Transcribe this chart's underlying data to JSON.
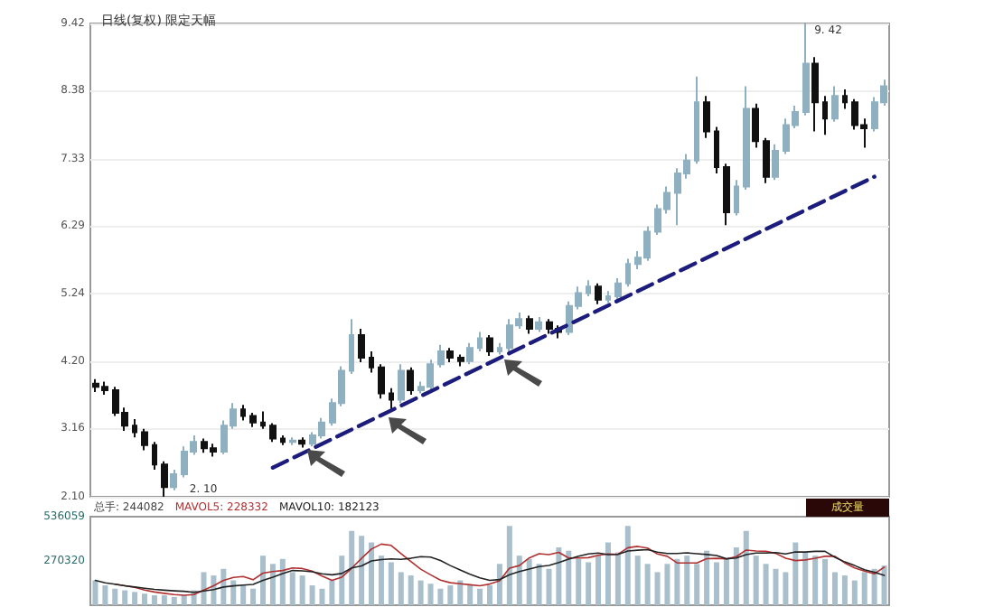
{
  "chart_data": [
    {
      "type": "candlestick",
      "title": "日线(复权) 限定天幅",
      "categories": [
        null,
        null,
        null,
        null,
        null,
        null,
        null,
        null,
        null,
        null,
        null,
        null,
        null,
        null,
        null,
        null,
        null,
        null,
        null,
        null,
        null,
        null,
        null,
        null,
        null,
        null,
        null,
        null,
        null,
        null,
        null,
        null,
        null,
        null,
        null,
        null,
        null,
        null,
        null,
        null,
        null,
        null,
        null,
        null,
        null,
        null,
        null,
        null,
        null,
        null,
        null,
        null,
        null,
        null,
        null,
        null,
        null,
        null,
        null,
        null,
        null,
        null,
        null,
        null,
        null,
        null,
        null,
        null,
        null,
        null,
        null,
        null,
        null,
        null,
        null,
        null,
        null,
        null,
        null,
        null,
        null
      ],
      "series": [
        {
          "ohlc": [
            [
              3.85,
              3.92,
              3.72,
              3.8
            ],
            [
              3.8,
              3.88,
              3.68,
              3.75
            ],
            [
              3.75,
              3.8,
              3.35,
              3.4
            ],
            [
              3.4,
              3.48,
              3.12,
              3.2
            ],
            [
              3.2,
              3.3,
              3.02,
              3.1
            ],
            [
              3.1,
              3.15,
              2.82,
              2.9
            ],
            [
              2.9,
              2.95,
              2.52,
              2.6
            ],
            [
              2.6,
              2.65,
              2.1,
              2.25
            ],
            [
              2.25,
              2.52,
              2.2,
              2.45
            ],
            [
              2.45,
              2.88,
              2.4,
              2.8
            ],
            [
              2.8,
              3.05,
              2.75,
              2.95
            ],
            [
              2.95,
              3.0,
              2.78,
              2.85
            ],
            [
              2.85,
              2.92,
              2.72,
              2.8
            ],
            [
              2.8,
              3.28,
              2.76,
              3.2
            ],
            [
              3.2,
              3.55,
              3.15,
              3.45
            ],
            [
              3.45,
              3.52,
              3.28,
              3.35
            ],
            [
              3.35,
              3.4,
              3.18,
              3.25
            ],
            [
              3.25,
              3.42,
              3.15,
              3.2
            ],
            [
              3.2,
              3.24,
              2.95,
              3.0
            ],
            [
              3.0,
              3.05,
              2.9,
              2.95
            ],
            [
              2.95,
              3.02,
              2.9,
              2.97
            ],
            [
              2.97,
              3.02,
              2.86,
              2.92
            ],
            [
              2.92,
              3.1,
              2.88,
              3.05
            ],
            [
              3.05,
              3.32,
              3.0,
              3.25
            ],
            [
              3.25,
              3.62,
              3.2,
              3.55
            ],
            [
              3.55,
              4.12,
              3.5,
              4.05
            ],
            [
              4.05,
              4.85,
              4.0,
              4.6
            ],
            [
              4.6,
              4.7,
              4.18,
              4.25
            ],
            [
              4.25,
              4.35,
              4.02,
              4.1
            ],
            [
              4.1,
              4.15,
              3.62,
              3.7
            ],
            [
              3.7,
              3.78,
              3.45,
              3.6
            ],
            [
              3.6,
              4.15,
              3.55,
              4.05
            ],
            [
              4.05,
              4.1,
              3.68,
              3.75
            ],
            [
              3.75,
              3.88,
              3.7,
              3.8
            ],
            [
              3.8,
              4.22,
              3.75,
              4.15
            ],
            [
              4.15,
              4.45,
              4.1,
              4.35
            ],
            [
              4.35,
              4.4,
              4.18,
              4.25
            ],
            [
              4.25,
              4.3,
              4.12,
              4.2
            ],
            [
              4.2,
              4.48,
              4.15,
              4.4
            ],
            [
              4.4,
              4.65,
              4.35,
              4.55
            ],
            [
              4.55,
              4.6,
              4.28,
              4.35
            ],
            [
              4.35,
              4.48,
              4.3,
              4.4
            ],
            [
              4.4,
              4.85,
              4.35,
              4.75
            ],
            [
              4.75,
              4.95,
              4.7,
              4.85
            ],
            [
              4.85,
              4.9,
              4.62,
              4.7
            ],
            [
              4.7,
              4.88,
              4.65,
              4.8
            ],
            [
              4.8,
              4.85,
              4.62,
              4.7
            ],
            [
              4.7,
              4.75,
              4.55,
              4.65
            ],
            [
              4.65,
              5.12,
              4.6,
              5.05
            ],
            [
              5.05,
              5.35,
              5.0,
              5.25
            ],
            [
              5.25,
              5.45,
              5.2,
              5.35
            ],
            [
              5.35,
              5.4,
              5.08,
              5.15
            ],
            [
              5.15,
              5.28,
              5.1,
              5.2
            ],
            [
              5.2,
              5.48,
              5.15,
              5.4
            ],
            [
              5.4,
              5.78,
              5.35,
              5.7
            ],
            [
              5.7,
              5.9,
              5.62,
              5.8
            ],
            [
              5.8,
              6.28,
              5.75,
              6.2
            ],
            [
              6.2,
              6.62,
              6.15,
              6.55
            ],
            [
              6.55,
              6.9,
              6.48,
              6.8
            ],
            [
              6.8,
              7.18,
              6.3,
              7.1
            ],
            [
              7.1,
              7.4,
              7.02,
              7.3
            ],
            [
              7.3,
              8.6,
              7.25,
              8.2
            ],
            [
              8.2,
              8.3,
              7.65,
              7.75
            ],
            [
              7.75,
              7.82,
              7.1,
              7.2
            ],
            [
              7.2,
              7.25,
              6.3,
              6.5
            ],
            [
              6.5,
              7.0,
              6.45,
              6.9
            ],
            [
              6.9,
              8.45,
              6.85,
              8.1
            ],
            [
              8.1,
              8.18,
              7.5,
              7.6
            ],
            [
              7.6,
              7.65,
              6.95,
              7.05
            ],
            [
              7.05,
              7.55,
              7.0,
              7.45
            ],
            [
              7.45,
              7.95,
              7.4,
              7.85
            ],
            [
              7.85,
              8.15,
              7.8,
              8.05
            ],
            [
              8.05,
              9.42,
              8.0,
              8.8
            ],
            [
              8.8,
              8.9,
              7.75,
              8.2
            ],
            [
              8.2,
              8.3,
              7.7,
              7.95
            ],
            [
              7.95,
              8.45,
              7.9,
              8.3
            ],
            [
              8.3,
              8.4,
              8.1,
              8.2
            ],
            [
              8.2,
              8.25,
              7.78,
              7.85
            ],
            [
              7.85,
              7.95,
              7.5,
              7.8
            ],
            [
              7.8,
              8.28,
              7.75,
              8.2
            ],
            [
              8.2,
              8.55,
              8.15,
              8.45
            ]
          ],
          "colors": [
            "#111111",
            "#111111",
            "#111111",
            "#111111",
            "#111111",
            "#111111",
            "#111111",
            "#111111",
            "#8fb0c0",
            "#8fb0c0",
            "#8fb0c0",
            "#111111",
            "#111111",
            "#8fb0c0",
            "#8fb0c0",
            "#111111",
            "#111111",
            "#111111",
            "#111111",
            "#111111",
            "#8fb0c0",
            "#111111",
            "#8fb0c0",
            "#8fb0c0",
            "#8fb0c0",
            "#8fb0c0",
            "#8fb0c0",
            "#111111",
            "#111111",
            "#111111",
            "#111111",
            "#8fb0c0",
            "#111111",
            "#8fb0c0",
            "#8fb0c0",
            "#8fb0c0",
            "#111111",
            "#111111",
            "#8fb0c0",
            "#8fb0c0",
            "#111111",
            "#8fb0c0",
            "#8fb0c0",
            "#8fb0c0",
            "#111111",
            "#8fb0c0",
            "#111111",
            "#111111",
            "#8fb0c0",
            "#8fb0c0",
            "#8fb0c0",
            "#111111",
            "#8fb0c0",
            "#8fb0c0",
            "#8fb0c0",
            "#8fb0c0",
            "#8fb0c0",
            "#8fb0c0",
            "#8fb0c0",
            "#8fb0c0",
            "#8fb0c0",
            "#8fb0c0",
            "#111111",
            "#111111",
            "#111111",
            "#8fb0c0",
            "#8fb0c0",
            "#111111",
            "#111111",
            "#8fb0c0",
            "#8fb0c0",
            "#8fb0c0",
            "#8fb0c0",
            "#111111",
            "#111111",
            "#8fb0c0",
            "#111111",
            "#111111",
            "#111111",
            "#8fb0c0",
            "#8fb0c0"
          ]
        },
        {
          "type": "line",
          "color": "#1c1c7c",
          "line_style": "dashed",
          "values": [
            null,
            null,
            null,
            null,
            null,
            null,
            null,
            null,
            null,
            null,
            null,
            null,
            null,
            null,
            null,
            null,
            null,
            null,
            2.55,
            null,
            null,
            null,
            null,
            null,
            null,
            null,
            null,
            null,
            null,
            null,
            null,
            null,
            null,
            null,
            null,
            null,
            null,
            null,
            null,
            null,
            null,
            null,
            null,
            null,
            null,
            null,
            null,
            null,
            null,
            null,
            null,
            null,
            null,
            null,
            null,
            null,
            null,
            null,
            null,
            null,
            null,
            null,
            null,
            null,
            null,
            null,
            null,
            null,
            null,
            null,
            null,
            null,
            null,
            null,
            null,
            null,
            null,
            null,
            null,
            7.05,
            null
          ]
        }
      ],
      "ylim": [
        2.1,
        9.42
      ],
      "yticks": [
        {
          "value": 2.1,
          "label": "2.10"
        },
        3.16,
        {
          "value": 4.2,
          "label": "4.20"
        },
        5.24,
        6.29,
        7.33,
        8.38,
        9.42
      ],
      "grid": "y",
      "tick_labels": "y",
      "annotations": [
        "9. 42",
        "2. 10"
      ]
    },
    {
      "type": "bar",
      "marker": "none",
      "tick_labels": "y",
      "annotations": [
        "总手: 244082",
        "MAVOL5: 228332",
        "MAVOL10: 182123",
        "成交量"
      ],
      "categories": [
        null,
        null,
        null,
        null,
        null,
        null,
        null,
        null,
        null,
        null,
        null,
        null,
        null,
        null,
        null,
        null,
        null,
        null,
        null,
        null,
        null,
        null,
        null,
        null,
        null,
        null,
        null,
        null,
        null,
        null,
        null,
        null,
        null,
        null,
        null,
        null,
        null,
        null,
        null,
        null,
        null,
        null,
        null,
        null,
        null,
        null,
        null,
        null,
        null,
        null,
        null,
        null,
        null,
        null,
        null,
        null,
        null,
        null,
        null,
        null,
        null,
        null,
        null,
        null,
        null,
        null,
        null,
        null,
        null,
        null,
        null,
        null,
        null,
        null,
        null,
        null,
        null,
        null,
        null,
        null,
        null
      ],
      "ylim": [
        0,
        536059
      ],
      "yticks": [
        270320,
        536059
      ],
      "series": [
        {
          "color": "#a9bfcc",
          "values": [
            150000,
            120000,
            100000,
            90000,
            80000,
            70000,
            60000,
            60000,
            50000,
            60000,
            90000,
            200000,
            180000,
            220000,
            150000,
            120000,
            100000,
            300000,
            250000,
            280000,
            200000,
            180000,
            120000,
            100000,
            150000,
            300000,
            450000,
            420000,
            380000,
            300000,
            260000,
            200000,
            180000,
            150000,
            130000,
            100000,
            120000,
            150000,
            120000,
            100000,
            120000,
            250000,
            480000,
            300000,
            280000,
            250000,
            220000,
            350000,
            330000,
            280000,
            260000,
            300000,
            380000,
            320000,
            480000,
            300000,
            250000,
            200000,
            250000,
            280000,
            300000,
            250000,
            330000,
            260000,
            280000,
            350000,
            450000,
            300000,
            250000,
            220000,
            200000,
            380000,
            320000,
            300000,
            280000,
            200000,
            180000,
            150000,
            200000,
            220000,
            240000
          ]
        },
        {
          "type": "line",
          "color": "#b03030",
          "values": [
            null,
            null,
            127000,
            118000,
            108000,
            92000,
            80000,
            72000,
            64000,
            60000,
            64000,
            92000,
            118000,
            150000,
            168000,
            174000,
            154000,
            194000,
            204000,
            210000,
            226000,
            222000,
            206000,
            176000,
            150000,
            170000,
            224000,
            284000,
            340000,
            370000,
            362000,
            312000,
            264000,
            218000,
            184000,
            152000,
            136000,
            130000,
            124000,
            118000,
            128000,
            148000,
            224000,
            240000,
            286000,
            312000,
            306000,
            320000,
            286000,
            286000,
            288000,
            302000,
            310000,
            308000,
            348000,
            356000,
            346000,
            310000,
            296000,
            256000,
            256000,
            256000,
            282000,
            284000,
            280000,
            294000,
            334000,
            328000,
            326000,
            314000,
            284000,
            270000,
            274000,
            284000,
            296000,
            296000,
            256000,
            226000,
            206000,
            190000,
            230000
          ]
        },
        {
          "type": "line",
          "color": "#222222",
          "values": [
            150000,
            135000,
            127000,
            118000,
            110000,
            103000,
            96000,
            91000,
            87000,
            84000,
            78000,
            86000,
            94000,
            110000,
            117000,
            122000,
            126000,
            150000,
            170000,
            192000,
            210000,
            208000,
            202000,
            190000,
            184000,
            192000,
            226000,
            238000,
            268000,
            276000,
            280000,
            278000,
            284000,
            294000,
            291000,
            271000,
            240000,
            213000,
            187000,
            166000,
            150000,
            155000,
            185000,
            204000,
            219000,
            234000,
            241000,
            258000,
            279000,
            297000,
            310000,
            316000,
            306000,
            308000,
            328000,
            333000,
            336000,
            321000,
            313000,
            313000,
            317000,
            312000,
            307000,
            301000,
            281000,
            286000,
            306000,
            316000,
            316000,
            319000,
            310000,
            323000,
            322000,
            326000,
            326000,
            290000,
            262000,
            240000,
            215000,
            200000,
            180000
          ]
        }
      ]
    }
  ]
}
